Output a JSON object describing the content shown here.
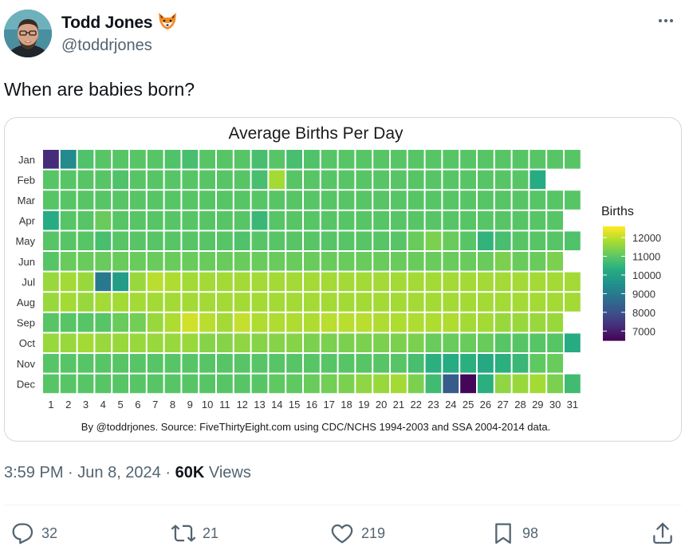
{
  "author": {
    "name": "Todd Jones",
    "emoji": "🦊",
    "handle": "@toddrjones"
  },
  "icons": {
    "more": "more-icon",
    "reply": "reply-icon",
    "retweet": "retweet-icon",
    "like": "heart-icon",
    "bookmark": "bookmark-icon",
    "share": "share-icon"
  },
  "tweet": {
    "text": "When are babies born?"
  },
  "meta": {
    "time": "3:59 PM",
    "sep1": " · ",
    "date": "Jun 8, 2024",
    "sep2": " · ",
    "views_count": "60K",
    "views_label": " Views"
  },
  "actions": {
    "replies": "32",
    "reposts": "21",
    "likes": "219",
    "bookmarks": "98"
  },
  "chart_data": {
    "type": "heatmap",
    "title": "Average Births Per Day",
    "caption": "By @toddrjones. Source: FiveThirtyEight.com using CDC/NCHS 1994-2003 and SSA 2004-2014 data.",
    "x_labels": [
      "1",
      "2",
      "3",
      "4",
      "5",
      "6",
      "7",
      "8",
      "9",
      "10",
      "11",
      "12",
      "13",
      "14",
      "15",
      "16",
      "17",
      "18",
      "19",
      "20",
      "21",
      "22",
      "23",
      "24",
      "25",
      "26",
      "27",
      "28",
      "29",
      "30",
      "31"
    ],
    "y_labels": [
      "Jan",
      "Feb",
      "Mar",
      "Apr",
      "May",
      "Jun",
      "Jul",
      "Aug",
      "Sep",
      "Oct",
      "Nov",
      "Dec"
    ],
    "legend": {
      "title": "Births",
      "ticks": [
        12000,
        11000,
        10000,
        9000,
        8000,
        7000
      ],
      "min": 6500,
      "max": 12600,
      "placement": "right"
    },
    "colorscale": "viridis",
    "values": [
      [
        7300,
        9400,
        10900,
        11000,
        11000,
        11000,
        11000,
        10900,
        10800,
        11000,
        11000,
        11000,
        10800,
        11000,
        10800,
        10900,
        11000,
        11000,
        11000,
        11000,
        11000,
        11000,
        11000,
        11000,
        11000,
        11000,
        11000,
        11000,
        11000,
        11000,
        11000
      ],
      [
        11000,
        11000,
        11000,
        11000,
        10900,
        11000,
        11000,
        11000,
        11000,
        11000,
        11000,
        11000,
        10800,
        11800,
        11000,
        11000,
        11000,
        11000,
        11000,
        11000,
        11000,
        11000,
        11000,
        11000,
        11000,
        11000,
        11000,
        11000,
        10300
      ],
      [
        11000,
        11000,
        11000,
        11000,
        11000,
        11000,
        11000,
        11000,
        11000,
        11000,
        11000,
        11000,
        11000,
        11000,
        11000,
        11000,
        11000,
        11000,
        11000,
        11000,
        11000,
        11000,
        11000,
        11000,
        11000,
        11000,
        11000,
        11000,
        11000,
        11000,
        11000
      ],
      [
        10300,
        11000,
        11000,
        11200,
        11000,
        11000,
        11000,
        11000,
        11000,
        11000,
        11000,
        11000,
        10600,
        11000,
        11000,
        11000,
        11000,
        11000,
        11000,
        11000,
        11000,
        11000,
        11000,
        11000,
        11000,
        11000,
        11000,
        11000,
        11000,
        11000
      ],
      [
        11000,
        11000,
        11000,
        10800,
        11000,
        11000,
        11000,
        11000,
        11000,
        11000,
        11000,
        10900,
        11000,
        11000,
        11000,
        11000,
        11000,
        11000,
        11000,
        11000,
        11000,
        11200,
        11400,
        11200,
        11000,
        10500,
        10800,
        11000,
        11000,
        11000,
        10900
      ],
      [
        11000,
        11200,
        11200,
        11200,
        11200,
        11200,
        11200,
        11200,
        11200,
        11200,
        11200,
        11200,
        11200,
        11200,
        11200,
        11200,
        11200,
        11200,
        11200,
        11200,
        11200,
        11200,
        11200,
        11200,
        11200,
        11200,
        11400,
        11200,
        11200,
        11400
      ],
      [
        11700,
        11800,
        11700,
        9000,
        9900,
        11700,
        12000,
        11900,
        11800,
        11800,
        11800,
        11800,
        11800,
        11800,
        11800,
        11800,
        11800,
        11800,
        11800,
        11800,
        11800,
        11800,
        11800,
        11800,
        11800,
        11800,
        11800,
        11800,
        11800,
        11800,
        11800
      ],
      [
        11700,
        11800,
        11700,
        11800,
        11800,
        11800,
        11800,
        11800,
        11800,
        11800,
        11800,
        11800,
        11800,
        11800,
        11800,
        11800,
        11800,
        11800,
        11800,
        11800,
        11800,
        11800,
        11800,
        11800,
        11800,
        11800,
        11800,
        11800,
        11800,
        11800,
        11800
      ],
      [
        11000,
        11000,
        11000,
        11000,
        11200,
        11300,
        11700,
        11900,
        12200,
        12000,
        11800,
        12100,
        11900,
        11900,
        11900,
        11900,
        12000,
        12000,
        12000,
        11900,
        11900,
        11900,
        11900,
        11900,
        11800,
        11800,
        11700,
        11700,
        11700,
        11700
      ],
      [
        11700,
        11700,
        11800,
        11700,
        11700,
        11700,
        11700,
        11700,
        11700,
        11500,
        11500,
        11600,
        11500,
        11500,
        11500,
        11400,
        11400,
        11400,
        11400,
        11400,
        11400,
        11400,
        11200,
        11200,
        11200,
        11200,
        11000,
        11000,
        11000,
        11000,
        10300
      ],
      [
        11000,
        11000,
        11000,
        11000,
        11000,
        11000,
        11000,
        11000,
        11000,
        11000,
        11000,
        11000,
        11000,
        11000,
        11000,
        11000,
        11000,
        11000,
        11000,
        11000,
        11000,
        10800,
        10400,
        10300,
        10400,
        10200,
        10400,
        10600,
        11100,
        11200
      ],
      [
        11000,
        11000,
        11000,
        11000,
        11000,
        11000,
        11000,
        11000,
        11000,
        11000,
        11000,
        11000,
        11000,
        11100,
        11100,
        11200,
        11300,
        11400,
        11600,
        11700,
        11800,
        11400,
        10700,
        8300,
        6600,
        10400,
        11600,
        11700,
        11800,
        11400,
        10700
      ]
    ]
  }
}
